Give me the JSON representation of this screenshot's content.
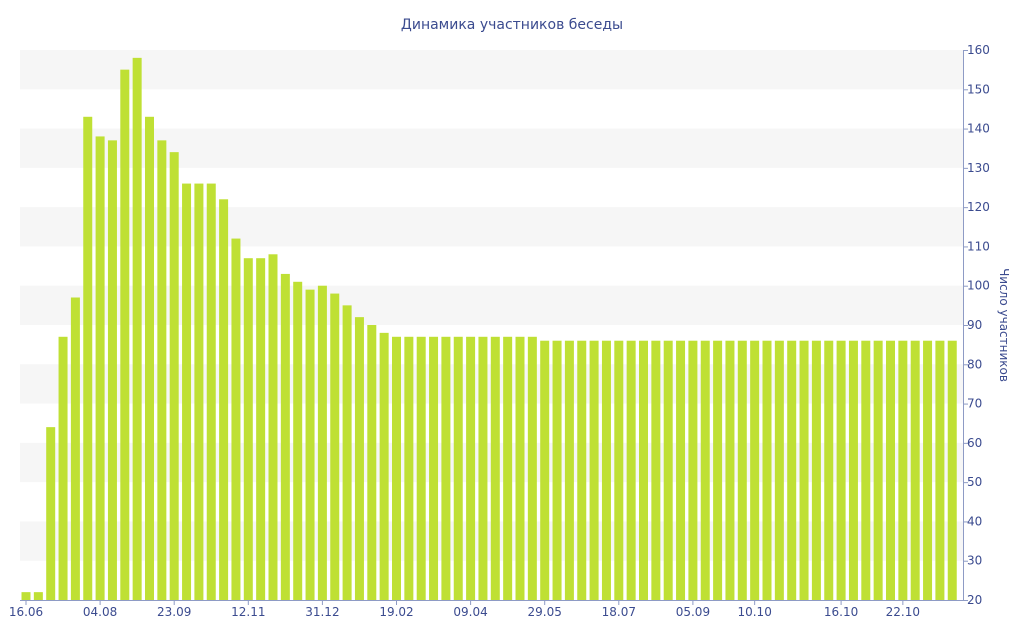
{
  "chart_data": {
    "type": "bar",
    "title": "Динамика участников беседы",
    "xlabel": "",
    "ylabel": "Число участников",
    "ylim": [
      20,
      160
    ],
    "yticks": [
      20,
      30,
      40,
      50,
      60,
      70,
      80,
      90,
      100,
      110,
      120,
      130,
      140,
      150,
      160
    ],
    "y_axis_side": "right",
    "grid": "alternating horizontal bands",
    "colors": {
      "bar": "#bfe034",
      "text": "#3b4b8f",
      "band": "#f6f6f6",
      "axis": "#8e9bc5"
    },
    "x_tick_labels": [
      {
        "label": "16.06",
        "index": 0
      },
      {
        "label": "04.08",
        "index": 6
      },
      {
        "label": "23.09",
        "index": 12
      },
      {
        "label": "12.11",
        "index": 18
      },
      {
        "label": "31.12",
        "index": 24
      },
      {
        "label": "19.02",
        "index": 30
      },
      {
        "label": "09.04",
        "index": 36
      },
      {
        "label": "29.05",
        "index": 42
      },
      {
        "label": "18.07",
        "index": 48
      },
      {
        "label": "05.09",
        "index": 54
      },
      {
        "label": "10.10",
        "index": 59
      },
      {
        "label": "16.10",
        "index": 66
      },
      {
        "label": "22.10",
        "index": 71
      }
    ],
    "values": [
      22,
      22,
      64,
      87,
      97,
      143,
      138,
      137,
      155,
      158,
      143,
      137,
      134,
      126,
      126,
      126,
      122,
      112,
      107,
      107,
      108,
      103,
      101,
      99,
      100,
      98,
      95,
      92,
      90,
      88,
      87,
      87,
      87,
      87,
      87,
      87,
      87,
      87,
      87,
      87,
      87,
      87,
      86,
      86,
      86,
      86,
      86,
      86,
      86,
      86,
      86,
      86,
      86,
      86,
      86,
      86,
      86,
      86,
      86,
      86,
      86,
      86,
      86,
      86,
      86,
      86,
      86,
      86,
      86,
      86,
      86,
      86,
      86,
      86,
      86,
      86
    ]
  }
}
